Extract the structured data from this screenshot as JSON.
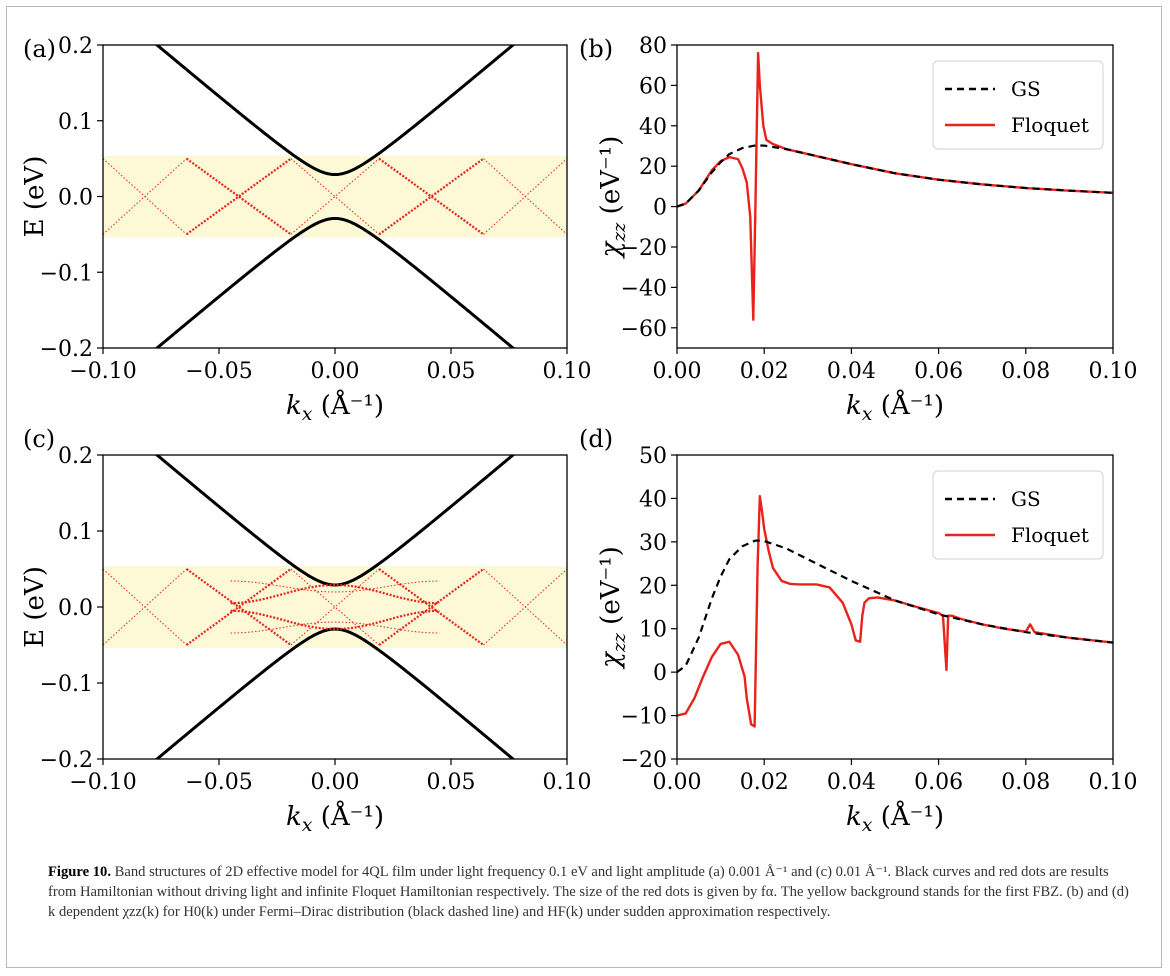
{
  "figure": {
    "caption": {
      "label": "Figure 10.",
      "text": "Band structures of 2D effective model for 4QL film under light frequency 0.1 eV and light amplitude (a) 0.001 Å⁻¹ and (c) 0.01 Å⁻¹. Black curves and red dots are results from Hamiltonian without driving light and infinite Floquet Hamiltonian respectively. The size of the red dots is given by fα. The yellow background stands for the first FBZ. (b) and (d) k dependent χzz(k) for H0(k) under Fermi–Dirac distribution (black dashed line) and HF(k) under sudden approximation respectively."
    }
  },
  "colors": {
    "band_black": "#000000",
    "floquet_red": "#e8231b",
    "fbz_yellow": "#fdf8d6"
  },
  "chart_data": [
    {
      "panel": "(a)",
      "type": "scatter",
      "xlabel": "k_x (Å⁻¹)",
      "ylabel": "E (eV)",
      "xlim": [
        -0.1,
        0.1
      ],
      "ylim": [
        -0.2,
        0.2
      ],
      "xticks": [
        "−0.10",
        "−0.05",
        "0.00",
        "0.05",
        "0.10"
      ],
      "yticks": [
        "0.2",
        "0.1",
        "0.0",
        "−0.1",
        "−0.2"
      ],
      "fbz_band": [
        -0.05,
        0.05
      ],
      "gs_bands": {
        "gap_half": 0.029,
        "slope": 2.58
      },
      "floquet_lines": {
        "edge_points_x": [
          -0.1,
          -0.064,
          -0.019,
          0.019,
          0.064,
          0.1
        ],
        "energy_limits": [
          -0.05,
          0.05
        ]
      }
    },
    {
      "panel": "(b)",
      "type": "line",
      "xlabel": "k_x (Å⁻¹)",
      "ylabel": "χzz (eV⁻¹)",
      "xlim": [
        0,
        0.1
      ],
      "ylim": [
        -70,
        80
      ],
      "xticks": [
        "0.00",
        "0.02",
        "0.04",
        "0.06",
        "0.08",
        "0.10"
      ],
      "yticks": [
        "80",
        "60",
        "40",
        "20",
        "0",
        "−20",
        "−40",
        "−60"
      ],
      "legend": [
        "GS",
        "Floquet"
      ],
      "series": [
        {
          "name": "GS",
          "style": "dashed",
          "color": "#000000",
          "x": [
            0,
            0.002,
            0.005,
            0.008,
            0.01,
            0.012,
            0.015,
            0.018,
            0.02,
            0.025,
            0.03,
            0.04,
            0.05,
            0.06,
            0.07,
            0.08,
            0.09,
            0.1
          ],
          "y": [
            0,
            1.5,
            8,
            17,
            22,
            26,
            29,
            30.3,
            30.2,
            28.5,
            26,
            21,
            16.5,
            13.3,
            11,
            9.2,
            7.9,
            6.8
          ]
        },
        {
          "name": "Floquet",
          "style": "solid",
          "color": "#e8231b",
          "x": [
            0,
            0.002,
            0.005,
            0.008,
            0.01,
            0.012,
            0.014,
            0.015,
            0.016,
            0.0168,
            0.0175,
            0.018,
            0.0186,
            0.019,
            0.0198,
            0.0205,
            0.022,
            0.025,
            0.03,
            0.04,
            0.05,
            0.06,
            0.07,
            0.08,
            0.09,
            0.1
          ],
          "y": [
            0,
            1.5,
            8,
            18,
            22.5,
            24.5,
            23.5,
            19,
            12,
            -5,
            -56,
            2,
            76,
            60,
            40,
            33,
            31,
            28.5,
            26,
            21,
            16.5,
            13.3,
            11,
            9.2,
            7.9,
            6.8
          ]
        }
      ]
    },
    {
      "panel": "(c)",
      "type": "scatter",
      "xlabel": "k_x (Å⁻¹)",
      "ylabel": "E (eV)",
      "xlim": [
        -0.1,
        0.1
      ],
      "ylim": [
        -0.2,
        0.2
      ],
      "xticks": [
        "−0.10",
        "−0.05",
        "0.00",
        "0.05",
        "0.10"
      ],
      "yticks": [
        "0.2",
        "0.1",
        "0.0",
        "−0.1",
        "−0.2"
      ],
      "fbz_band": [
        -0.05,
        0.05
      ],
      "gs_bands": {
        "gap_half": 0.029,
        "slope": 2.58
      },
      "floquet_lines": {
        "edge_points_x": [
          -0.1,
          -0.064,
          -0.019,
          0.019,
          0.064,
          0.1
        ],
        "energy_limits": [
          -0.05,
          0.05
        ],
        "inner_wave_energy": [
          0.017,
          0.027
        ]
      }
    },
    {
      "panel": "(d)",
      "type": "line",
      "xlabel": "k_x (Å⁻¹)",
      "ylabel": "χzz (eV⁻¹)",
      "xlim": [
        0,
        0.1
      ],
      "ylim": [
        -20,
        50
      ],
      "xticks": [
        "0.00",
        "0.02",
        "0.04",
        "0.06",
        "0.08",
        "0.10"
      ],
      "yticks": [
        "50",
        "40",
        "30",
        "20",
        "10",
        "0",
        "−10",
        "−20"
      ],
      "legend": [
        "GS",
        "Floquet"
      ],
      "series": [
        {
          "name": "GS",
          "style": "dashed",
          "color": "#000000",
          "x": [
            0,
            0.002,
            0.005,
            0.008,
            0.01,
            0.012,
            0.015,
            0.018,
            0.02,
            0.025,
            0.03,
            0.04,
            0.05,
            0.06,
            0.07,
            0.08,
            0.09,
            0.1
          ],
          "y": [
            0,
            1.5,
            8,
            17,
            22,
            26,
            29,
            30.3,
            30.2,
            28.5,
            26,
            21,
            16.5,
            13.3,
            11,
            9.2,
            7.9,
            6.8
          ]
        },
        {
          "name": "Floquet",
          "style": "solid",
          "color": "#e8231b",
          "x": [
            0,
            0.002,
            0.004,
            0.006,
            0.008,
            0.01,
            0.012,
            0.014,
            0.0155,
            0.016,
            0.017,
            0.0178,
            0.0185,
            0.019,
            0.0195,
            0.02,
            0.021,
            0.022,
            0.024,
            0.026,
            0.028,
            0.032,
            0.035,
            0.038,
            0.04,
            0.041,
            0.042,
            0.0425,
            0.043,
            0.044,
            0.046,
            0.05,
            0.055,
            0.06,
            0.061,
            0.0618,
            0.0622,
            0.063,
            0.065,
            0.07,
            0.075,
            0.08,
            0.081,
            0.082,
            0.09,
            0.1
          ],
          "y": [
            -10,
            -9.5,
            -6,
            -1,
            3.5,
            6.5,
            7,
            4,
            -1,
            -6,
            -12,
            -12.5,
            25,
            40.5,
            37,
            33,
            28,
            24,
            21,
            20.3,
            20.2,
            20.2,
            19.5,
            16,
            11,
            7.3,
            7,
            13,
            16,
            17,
            17.2,
            16.5,
            15,
            13.6,
            13,
            0.5,
            13,
            13,
            12.3,
            11,
            10,
            9.3,
            11,
            9.2,
            7.9,
            6.8
          ]
        }
      ]
    }
  ]
}
